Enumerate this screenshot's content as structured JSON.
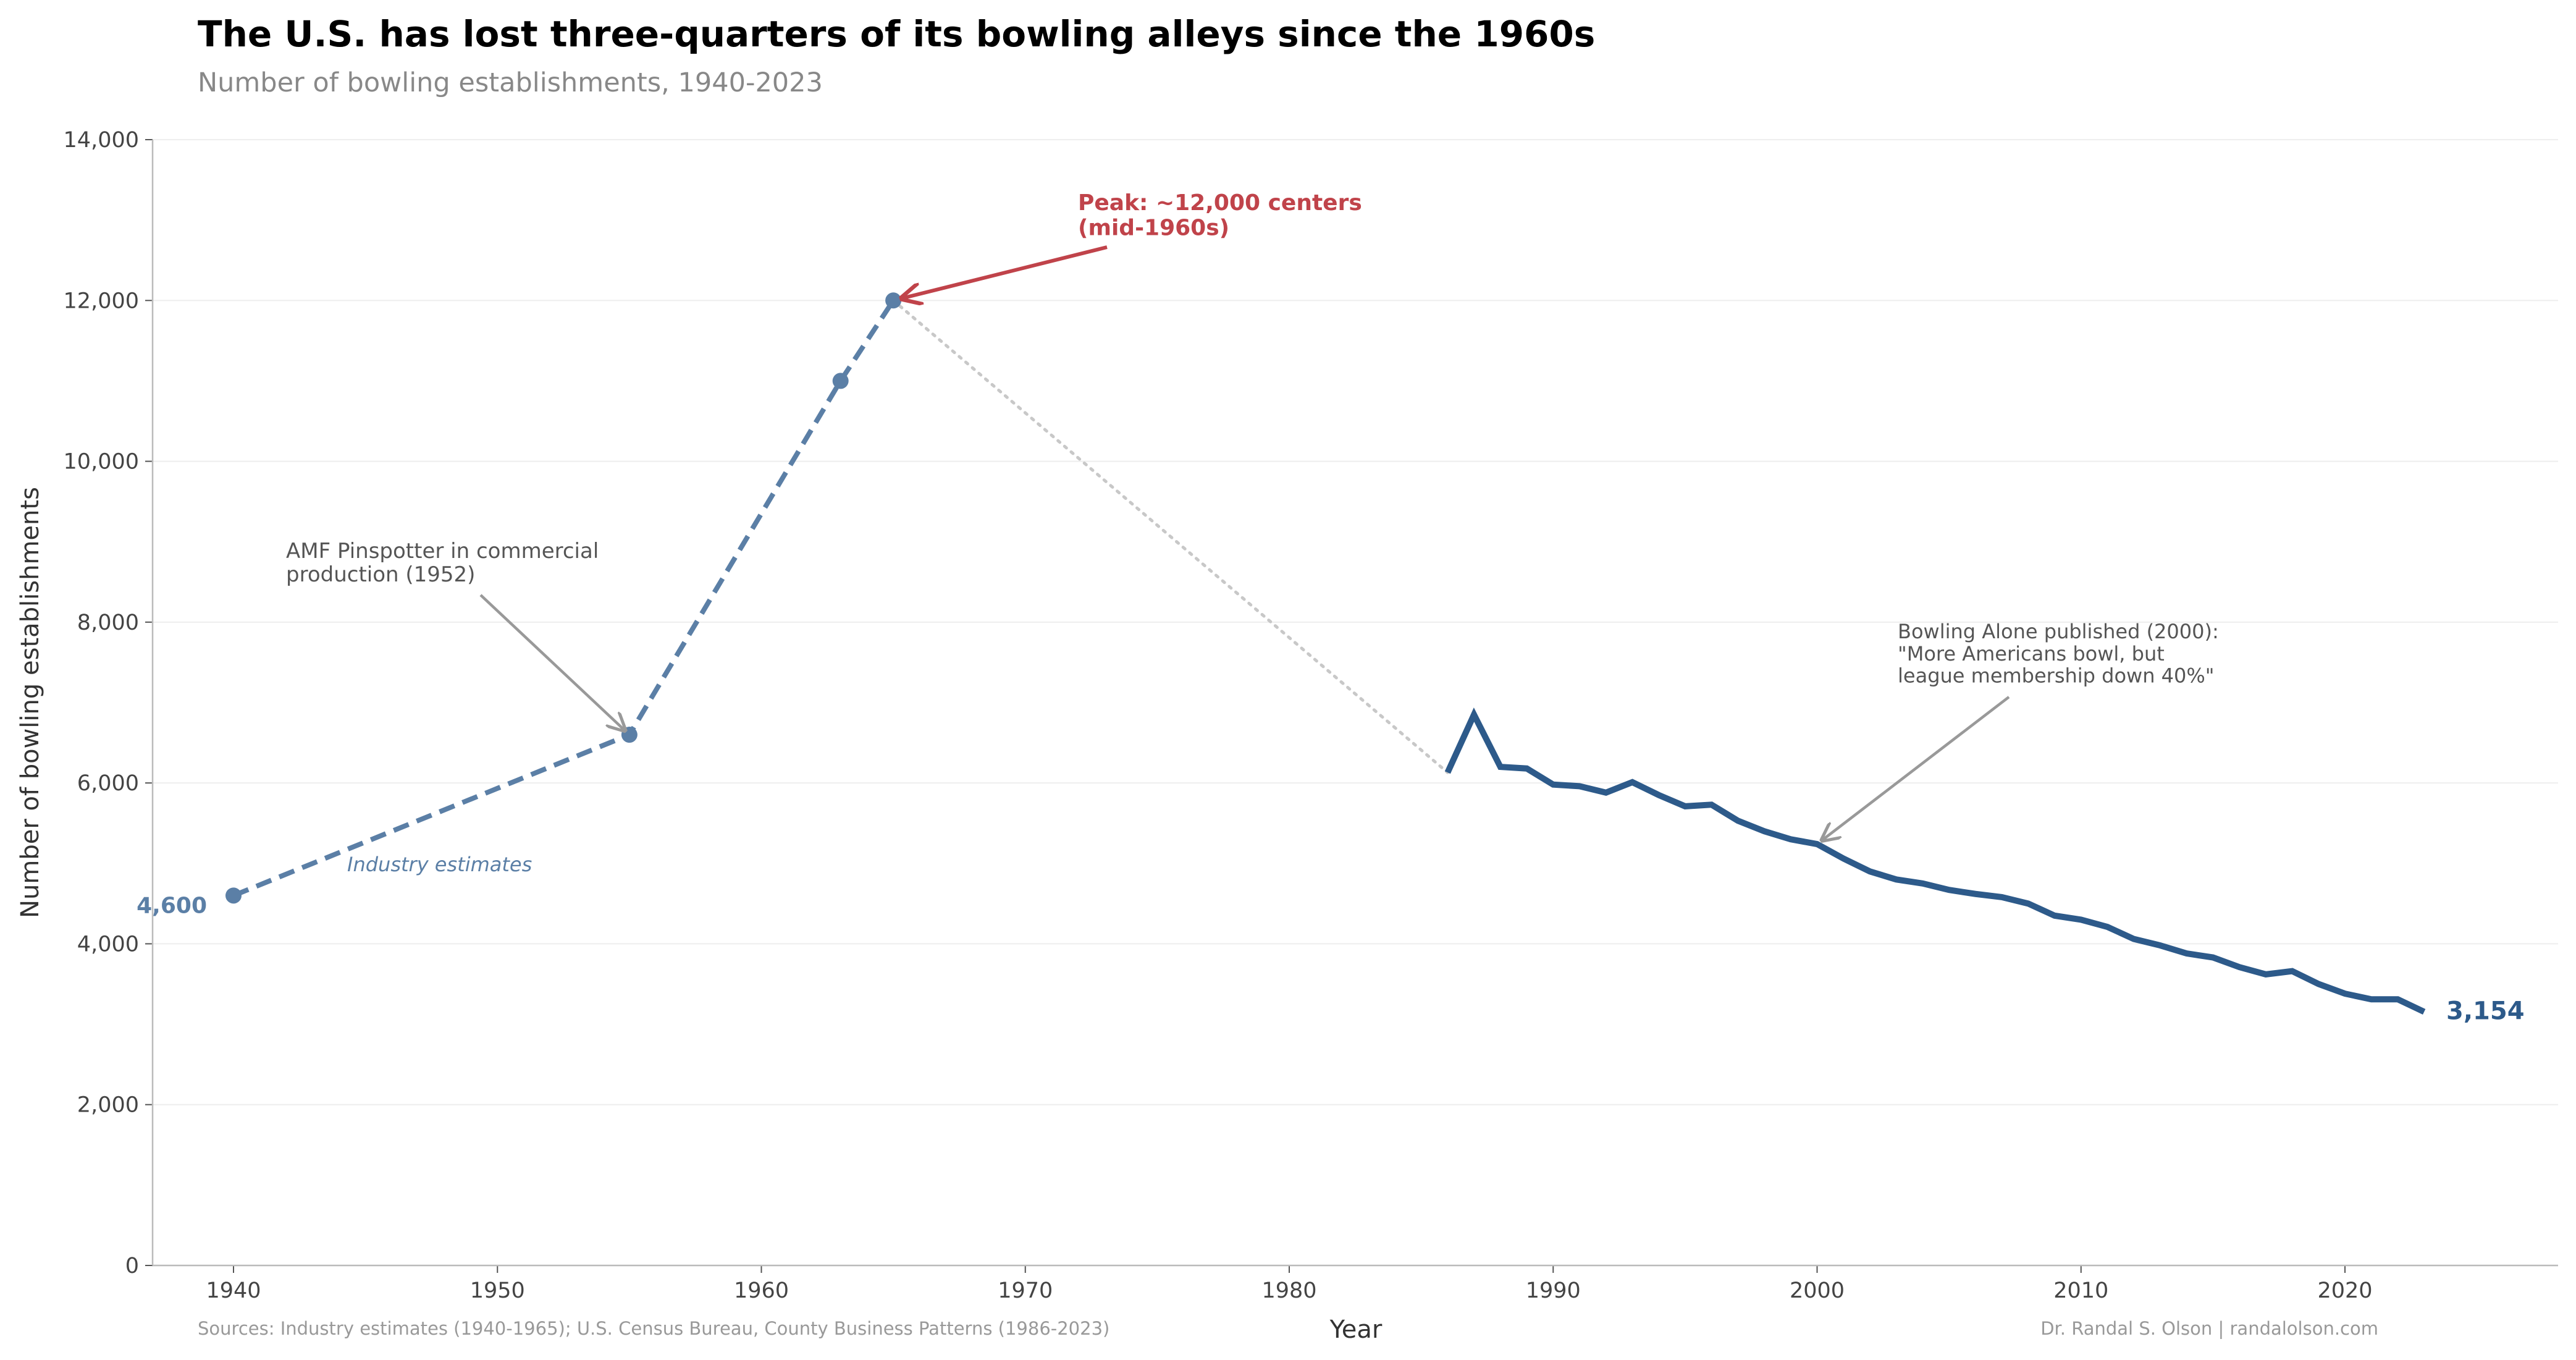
{
  "chart_data": {
    "type": "line",
    "title": "The U.S. has lost three-quarters of its bowling alleys since the 1960s",
    "subtitle": "Number of bowling establishments, 1940-2023",
    "xlabel": "Year",
    "ylabel": "Number of bowling establishments",
    "xlim": [
      1937,
      2028
    ],
    "ylim": [
      0,
      14000
    ],
    "x_ticks": [
      1940,
      1950,
      1960,
      1970,
      1980,
      1990,
      2000,
      2010,
      2020
    ],
    "y_ticks": [
      0,
      2000,
      4000,
      6000,
      8000,
      10000,
      12000,
      14000
    ],
    "y_tick_labels": [
      "0",
      "2,000",
      "4,000",
      "6,000",
      "8,000",
      "10,000",
      "12,000",
      "14,000"
    ],
    "grid": "horizontal",
    "colors": {
      "estimates": "#5b7fa6",
      "census": "#2d5a8a",
      "gap": "#c8c8c8",
      "peak": "#c0434a",
      "annotation": "#555555",
      "arrow": "#999999"
    },
    "series": [
      {
        "style": "dashed-with-markers",
        "label": "Industry estimates",
        "x": [
          1940,
          1955,
          1963,
          1965
        ],
        "y": [
          4600,
          6600,
          11000,
          12000
        ]
      },
      {
        "style": "solid",
        "x": [
          1986,
          1987,
          1988,
          1989,
          1990,
          1991,
          1992,
          1993,
          1994,
          1995,
          1996,
          1997,
          1998,
          1999,
          2000,
          2001,
          2002,
          2003,
          2004,
          2005,
          2006,
          2007,
          2008,
          2009,
          2010,
          2011,
          2012,
          2013,
          2014,
          2015,
          2016,
          2017,
          2018,
          2019,
          2020,
          2021,
          2022,
          2023
        ],
        "y": [
          6130,
          6850,
          6200,
          6180,
          5980,
          5960,
          5880,
          6010,
          5850,
          5710,
          5730,
          5530,
          5400,
          5300,
          5240,
          5060,
          4900,
          4800,
          4750,
          4670,
          4620,
          4580,
          4500,
          4350,
          4300,
          4210,
          4060,
          3980,
          3880,
          3830,
          3710,
          3620,
          3660,
          3500,
          3380,
          3310,
          3310,
          3154
        ]
      }
    ],
    "gap_connector": {
      "style": "dotted",
      "from": [
        1965,
        12000
      ],
      "to": [
        1986,
        6130
      ]
    },
    "point_labels": {
      "start": "4,600",
      "end": "3,154"
    },
    "annotations": [
      {
        "id": "peak",
        "lines": [
          "Peak: ~12,000 centers",
          "(mid-1960s)"
        ],
        "target": [
          1965,
          12000
        ]
      },
      {
        "id": "amf",
        "lines": [
          "AMF Pinspotter in commercial",
          "production (1952)"
        ],
        "target": [
          1955,
          6600
        ]
      },
      {
        "id": "bowling-alone",
        "lines": [
          "Bowling Alone published (2000):",
          "\"More Americans bowl, but",
          "league membership down 40%\""
        ],
        "target": [
          2000,
          5240
        ]
      }
    ],
    "footer": {
      "sources": "Sources: Industry estimates (1940-1965); U.S. Census Bureau, County Business Patterns (1986-2023)",
      "credit": "Dr. Randal S. Olson  |  randalolson.com"
    }
  }
}
